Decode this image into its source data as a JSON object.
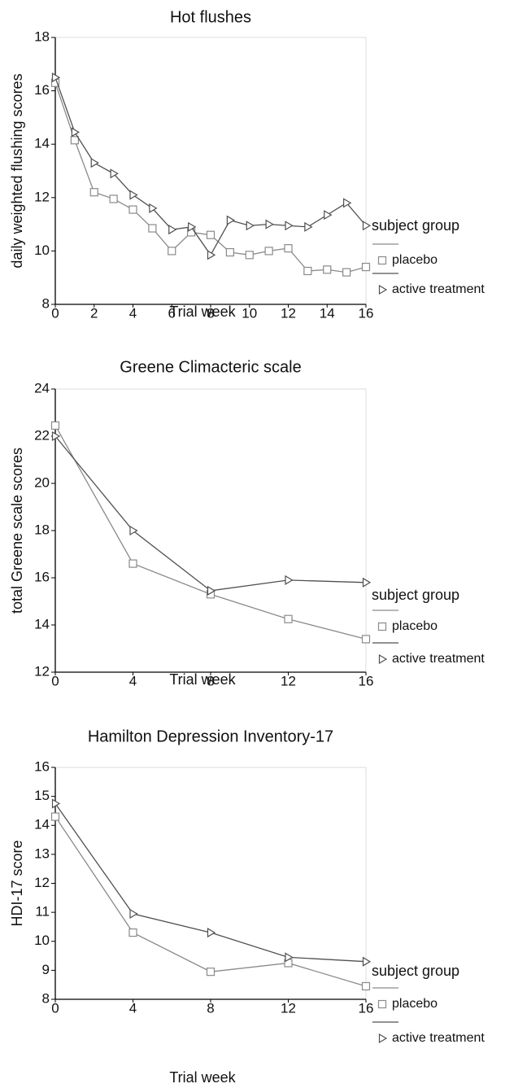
{
  "chart_data": [
    {
      "type": "line",
      "title": "Hot flushes",
      "x_label": "Trial week",
      "y_label": "daily weighted flushing scores",
      "x": [
        0,
        1,
        2,
        3,
        4,
        5,
        6,
        7,
        8,
        9,
        10,
        11,
        12,
        13,
        14,
        15,
        16
      ],
      "xlim": [
        0,
        16
      ],
      "xticks": [
        0,
        2,
        4,
        6,
        8,
        10,
        12,
        14,
        16
      ],
      "ylim": [
        8,
        18
      ],
      "yticks": [
        8,
        10,
        12,
        14,
        16,
        18
      ],
      "legend_title": "subject group",
      "series": [
        {
          "name": "placebo",
          "color": "#8a8a8a",
          "marker": "square",
          "values": [
            16.3,
            14.15,
            12.2,
            11.95,
            11.55,
            10.85,
            10.0,
            10.7,
            10.6,
            9.95,
            9.85,
            10.0,
            10.1,
            9.25,
            9.3,
            9.2,
            9.4
          ]
        },
        {
          "name": "active treatment",
          "color": "#505050",
          "marker": "triangle",
          "values": [
            16.5,
            14.45,
            13.3,
            12.9,
            12.1,
            11.6,
            10.8,
            10.9,
            9.85,
            11.15,
            10.95,
            11.0,
            10.95,
            10.9,
            11.35,
            11.8,
            10.95
          ]
        }
      ]
    },
    {
      "type": "line",
      "title": "Greene Climacteric scale",
      "x_label": "Trial week",
      "y_label": "total Greene scale scores",
      "x": [
        0,
        4,
        8,
        12,
        16
      ],
      "xlim": [
        0,
        16
      ],
      "xticks": [
        0,
        4,
        8,
        12,
        16
      ],
      "ylim": [
        12,
        24
      ],
      "yticks": [
        12,
        14,
        16,
        18,
        20,
        22,
        24
      ],
      "legend_title": "subject group",
      "series": [
        {
          "name": "placebo",
          "color": "#8a8a8a",
          "marker": "square",
          "values": [
            22.45,
            16.6,
            15.3,
            14.25,
            13.4
          ]
        },
        {
          "name": "active treatment",
          "color": "#505050",
          "marker": "triangle",
          "values": [
            22.0,
            18.0,
            15.45,
            15.9,
            15.8
          ]
        }
      ]
    },
    {
      "type": "line",
      "title": "Hamilton Depression Inventory-17",
      "x_label": "Trial week",
      "y_label": "HDI-17 score",
      "x": [
        0,
        4,
        8,
        12,
        16
      ],
      "xlim": [
        0,
        16
      ],
      "xticks": [
        0,
        4,
        8,
        12,
        16
      ],
      "ylim": [
        8,
        16
      ],
      "yticks": [
        8,
        9,
        10,
        11,
        12,
        13,
        14,
        15,
        16
      ],
      "legend_title": "subject group",
      "series": [
        {
          "name": "placebo",
          "color": "#8a8a8a",
          "marker": "square",
          "values": [
            14.3,
            10.3,
            8.95,
            9.25,
            8.45
          ]
        },
        {
          "name": "active treatment",
          "color": "#505050",
          "marker": "triangle",
          "values": [
            14.75,
            10.95,
            10.3,
            9.45,
            9.3
          ]
        }
      ]
    }
  ]
}
